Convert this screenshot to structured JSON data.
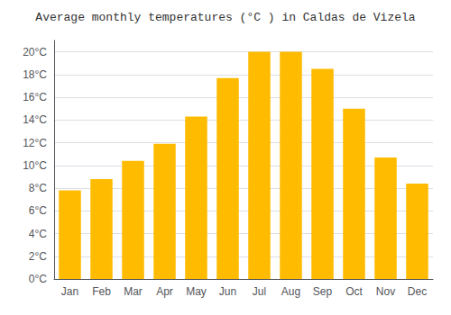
{
  "chart_data": {
    "type": "bar",
    "title": "Average monthly temperatures (°C ) in Caldas de Vizela",
    "categories": [
      "Jan",
      "Feb",
      "Mar",
      "Apr",
      "May",
      "Jun",
      "Jul",
      "Aug",
      "Sep",
      "Oct",
      "Nov",
      "Dec"
    ],
    "values": [
      7.8,
      8.8,
      10.4,
      11.9,
      14.3,
      17.7,
      20.0,
      20.0,
      18.5,
      15.0,
      10.7,
      8.4
    ],
    "color": "#FFBB00",
    "ylim": [
      0,
      21
    ],
    "yticks": [
      {
        "value": 0,
        "label": "0°C"
      },
      {
        "value": 2,
        "label": "2°C"
      },
      {
        "value": 4,
        "label": "4°C"
      },
      {
        "value": 6,
        "label": "6°C"
      },
      {
        "value": 8,
        "label": "8°C"
      },
      {
        "value": 10,
        "label": "10°C"
      },
      {
        "value": 12,
        "label": "12°C"
      },
      {
        "value": 14,
        "label": "14°C"
      },
      {
        "value": 16,
        "label": "16°C"
      },
      {
        "value": 18,
        "label": "18°C"
      },
      {
        "value": 20,
        "label": "20°C"
      }
    ],
    "grid": true
  }
}
